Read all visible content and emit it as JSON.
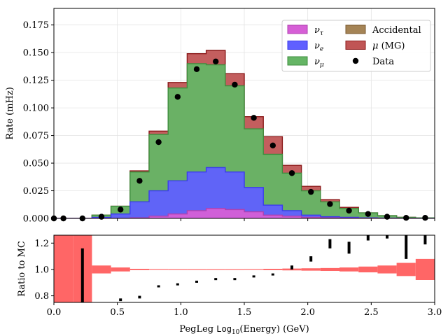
{
  "chart_data": [
    {
      "type": "area",
      "chart_kind": "stacked step histogram with data points",
      "xlim": [
        0,
        3.0
      ],
      "ylim": [
        0,
        0.19
      ],
      "ylabel": "Rate (mHz)",
      "xlabel": "",
      "grid": true,
      "legend_placement": "top-right",
      "yticks": [
        "0.000",
        "0.025",
        "0.050",
        "0.075",
        "0.100",
        "0.125",
        "0.150",
        "0.175"
      ],
      "bin_edges": [
        0.0,
        0.15,
        0.3,
        0.45,
        0.6,
        0.75,
        0.9,
        1.05,
        1.2,
        1.35,
        1.5,
        1.65,
        1.8,
        1.95,
        2.1,
        2.25,
        2.4,
        2.55,
        2.7,
        2.85,
        3.0
      ],
      "series": [
        {
          "name": "ντ",
          "legend_base": "ν",
          "legend_sub": "τ",
          "color": "#d65fd6",
          "edge": "#b040b0",
          "values": [
            0,
            0,
            0,
            0,
            0.0005,
            0.002,
            0.004,
            0.007,
            0.009,
            0.008,
            0.006,
            0.003,
            0.002,
            0.001,
            0.0005,
            0.0003,
            0.0002,
            0.0001,
            0.0001,
            0
          ]
        },
        {
          "name": "νe",
          "legend_base": "ν",
          "legend_sub": "e",
          "color": "#6060ff",
          "edge": "#3a3aee",
          "values": [
            0,
            0,
            0.001,
            0.004,
            0.015,
            0.025,
            0.034,
            0.042,
            0.046,
            0.042,
            0.028,
            0.012,
            0.007,
            0.003,
            0.0015,
            0.001,
            0.0005,
            0.0003,
            0.0001,
            0
          ]
        },
        {
          "name": "νμ",
          "legend_base": "ν",
          "legend_sub": "μ",
          "color": "#65b565",
          "edge": "#3e8e3e",
          "values": [
            0,
            0,
            0.003,
            0.011,
            0.042,
            0.076,
            0.118,
            0.14,
            0.139,
            0.12,
            0.081,
            0.058,
            0.041,
            0.025,
            0.015,
            0.009,
            0.005,
            0.0025,
            0.001,
            0.0005
          ]
        },
        {
          "name": "Accidental",
          "color": "#a58456",
          "edge": "#7a5a30",
          "values": [
            0,
            0,
            0,
            0,
            0,
            0,
            0,
            0,
            0,
            0,
            0,
            0,
            0,
            0,
            0,
            0,
            0,
            0,
            0,
            0
          ]
        },
        {
          "name": "μ (MG)",
          "legend_base": "μ",
          "legend_suffix": " (MG)",
          "color": "#c05555",
          "edge": "#8b1a1a",
          "values": [
            0,
            0,
            0.003,
            0.011,
            0.043,
            0.079,
            0.123,
            0.149,
            0.152,
            0.131,
            0.092,
            0.074,
            0.048,
            0.029,
            0.017,
            0.01,
            0.005,
            0.0025,
            0.001,
            0.0005
          ]
        },
        {
          "name": "Data",
          "marker": "circle",
          "color": "#000000",
          "x": [
            0.0,
            0.075,
            0.225,
            0.375,
            0.525,
            0.675,
            0.825,
            0.975,
            1.125,
            1.275,
            1.425,
            1.575,
            1.725,
            1.875,
            2.025,
            2.175,
            2.325,
            2.475,
            2.625,
            2.775,
            2.925
          ],
          "y": [
            0.0,
            0.0,
            0.0,
            0.0015,
            0.008,
            0.034,
            0.069,
            0.11,
            0.135,
            0.142,
            0.121,
            0.091,
            0.066,
            0.041,
            0.024,
            0.013,
            0.007,
            0.004,
            0.0015,
            0.0005,
            0.0005
          ]
        }
      ]
    },
    {
      "type": "bar",
      "chart_kind": "ratio panel",
      "xlim": [
        0,
        3.0
      ],
      "ylim": [
        0.75,
        1.26
      ],
      "ylabel": "Ratio to MC",
      "xlabel_prefix": "PegLeg ",
      "xlabel_mono": "Log",
      "xlabel_sub": "10",
      "xlabel_suffix": "(Energy) (GeV)",
      "xticks": [
        "0.0",
        "0.5",
        "1.0",
        "1.5",
        "2.0",
        "2.5",
        "3.0"
      ],
      "yticks": [
        "0.8",
        "1.0",
        "1.2"
      ],
      "mc_uncertainty_color": "#ff6666",
      "mc_uncertainty_halfwidth": [
        0.6,
        0.6,
        0.03,
        0.015,
        0.005,
        0.003,
        0.002,
        0.002,
        0.002,
        0.002,
        0.003,
        0.005,
        0.007,
        0.009,
        0.011,
        0.015,
        0.022,
        0.03,
        0.05,
        0.08
      ],
      "ratio_points": {
        "color": "#000000",
        "x": [
          0.225,
          0.525,
          0.675,
          0.825,
          0.975,
          1.125,
          1.275,
          1.425,
          1.575,
          1.725,
          1.875,
          2.025,
          2.175,
          2.325,
          2.475,
          2.625,
          2.775,
          2.925
        ],
        "low": [
          0.75,
          0.76,
          0.78,
          0.868,
          0.885,
          0.905,
          0.925,
          0.925,
          0.945,
          0.955,
          1.0,
          1.06,
          1.16,
          1.12,
          1.22,
          1.235,
          1.08,
          1.19
        ],
        "high": [
          1.16,
          0.78,
          0.8,
          0.88,
          0.895,
          0.915,
          0.935,
          0.935,
          0.955,
          0.97,
          1.03,
          1.1,
          1.23,
          1.21,
          1.26,
          1.26,
          1.26,
          1.26
        ]
      }
    }
  ]
}
